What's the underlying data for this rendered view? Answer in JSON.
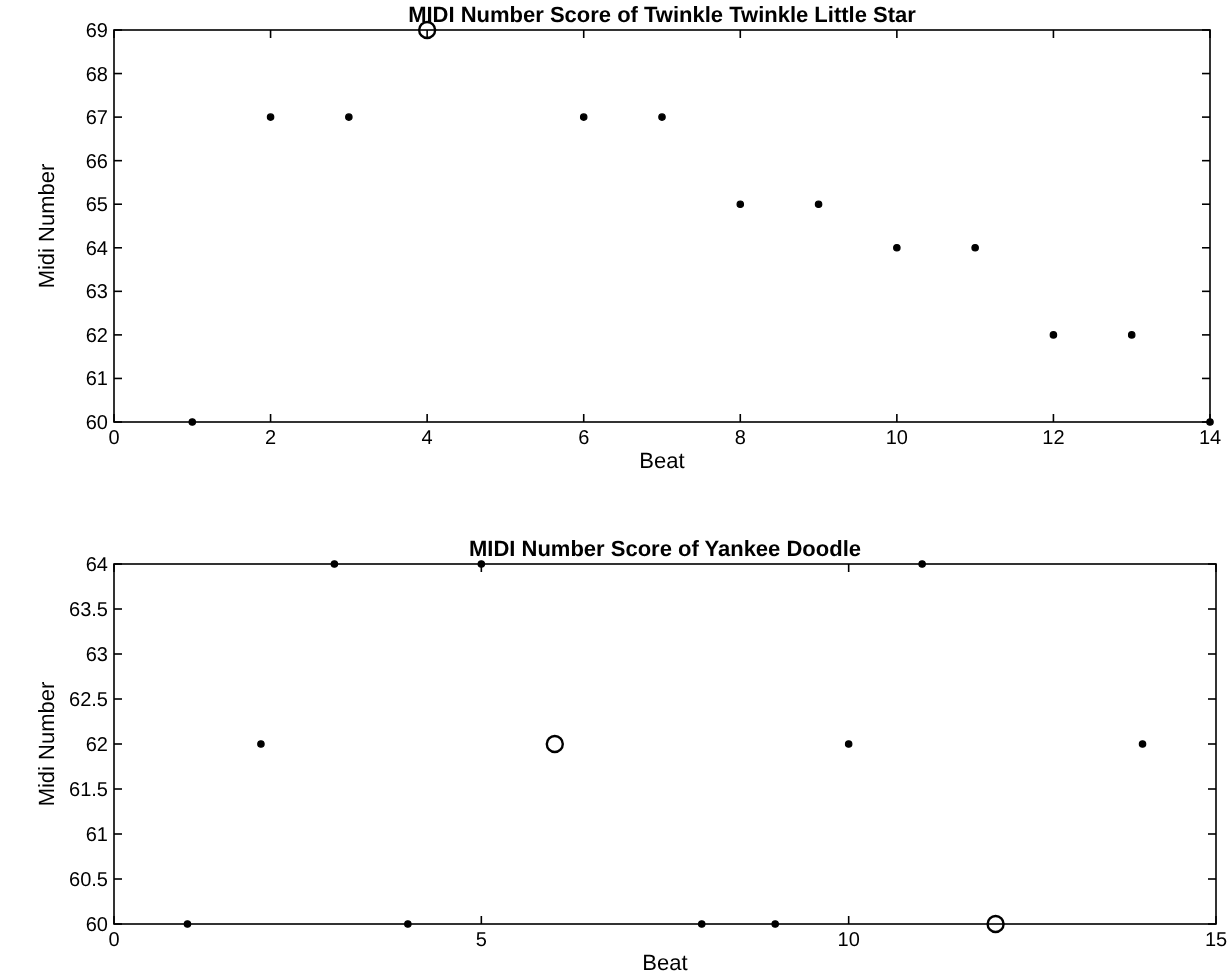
{
  "chart_data": [
    {
      "type": "scatter",
      "title": "MIDI Number Score of Twinkle Twinkle Little Star",
      "xlabel": "Beat",
      "ylabel": "Midi Number",
      "xlim": [
        0,
        14
      ],
      "xticks": [
        0,
        2,
        4,
        6,
        8,
        10,
        12,
        14
      ],
      "ylim": [
        60,
        69
      ],
      "yticks": [
        60,
        61,
        62,
        63,
        64,
        65,
        66,
        67,
        68,
        69
      ],
      "grid": false,
      "marker": "circle",
      "series": [
        {
          "color": "#000000",
          "x": [
            1,
            2,
            3,
            6,
            7,
            8,
            9,
            10,
            11,
            12,
            13,
            14
          ],
          "values": [
            60,
            67,
            67,
            67,
            67,
            65,
            65,
            64,
            64,
            62,
            62,
            60
          ]
        },
        {
          "color": "#000000",
          "x": [
            4
          ],
          "values": [
            69
          ]
        }
      ]
    },
    {
      "type": "scatter",
      "title": "MIDI Number Score of Yankee Doodle",
      "xlabel": "Beat",
      "ylabel": "Midi Number",
      "xlim": [
        0,
        15
      ],
      "xticks": [
        0,
        5,
        10,
        15
      ],
      "ylim": [
        60,
        64
      ],
      "yticks": [
        60,
        60.5,
        61,
        61.5,
        62,
        62.5,
        63,
        63.5,
        64
      ],
      "grid": false,
      "marker": "circle",
      "series": [
        {
          "color": "#000000",
          "x": [
            1,
            2,
            3,
            4,
            5,
            8,
            9,
            10,
            11,
            14
          ],
          "values": [
            60,
            62,
            64,
            60,
            64,
            60,
            60,
            62,
            64,
            62
          ]
        },
        {
          "color": "#000000",
          "x": [
            6,
            12
          ],
          "values": [
            62,
            60
          ]
        }
      ]
    }
  ]
}
